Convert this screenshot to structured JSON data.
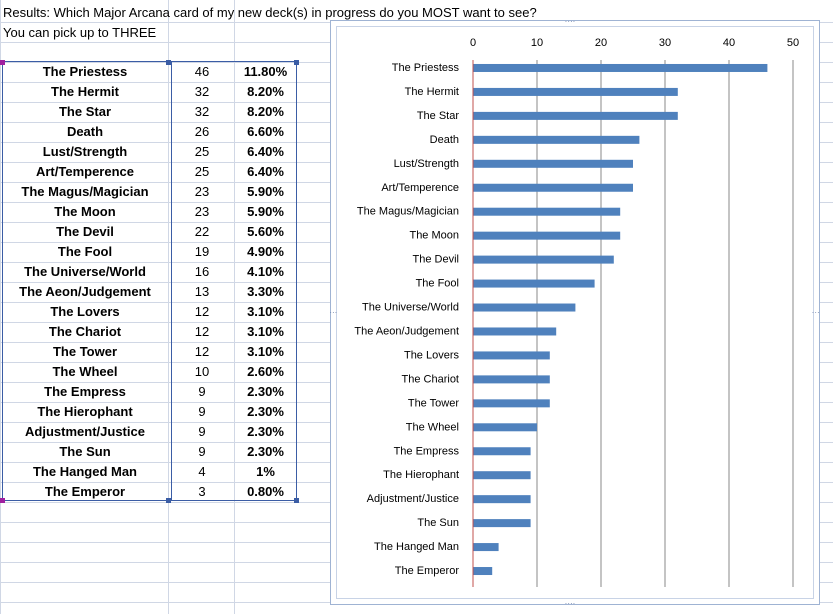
{
  "sheet": {
    "title_line1": "Results: Which Major Arcana card of my new deck(s) in progress do you MOST want to see?",
    "title_line2": "You can pick up to THREE"
  },
  "table": {
    "rows": [
      {
        "name": "The Priestess",
        "count": "46",
        "pct": "11.80%"
      },
      {
        "name": "The Hermit",
        "count": "32",
        "pct": "8.20%"
      },
      {
        "name": "The Star",
        "count": "32",
        "pct": "8.20%"
      },
      {
        "name": "Death",
        "count": "26",
        "pct": "6.60%"
      },
      {
        "name": "Lust/Strength",
        "count": "25",
        "pct": "6.40%"
      },
      {
        "name": "Art/Temperence",
        "count": "25",
        "pct": "6.40%"
      },
      {
        "name": "The Magus/Magician",
        "count": "23",
        "pct": "5.90%"
      },
      {
        "name": "The Moon",
        "count": "23",
        "pct": "5.90%"
      },
      {
        "name": "The Devil",
        "count": "22",
        "pct": "5.60%"
      },
      {
        "name": "The Fool",
        "count": "19",
        "pct": "4.90%"
      },
      {
        "name": "The Universe/World",
        "count": "16",
        "pct": "4.10%"
      },
      {
        "name": "The Aeon/Judgement",
        "count": "13",
        "pct": "3.30%"
      },
      {
        "name": "The Lovers",
        "count": "12",
        "pct": "3.10%"
      },
      {
        "name": "The Chariot",
        "count": "12",
        "pct": "3.10%"
      },
      {
        "name": "The Tower",
        "count": "12",
        "pct": "3.10%"
      },
      {
        "name": "The Wheel",
        "count": "10",
        "pct": "2.60%"
      },
      {
        "name": "The Empress",
        "count": "9",
        "pct": "2.30%"
      },
      {
        "name": "The Hierophant",
        "count": "9",
        "pct": "2.30%"
      },
      {
        "name": "Adjustment/Justice",
        "count": "9",
        "pct": "2.30%"
      },
      {
        "name": "The Sun",
        "count": "9",
        "pct": "2.30%"
      },
      {
        "name": "The Hanged Man",
        "count": "4",
        "pct": "1%"
      },
      {
        "name": "The Emperor",
        "count": "3",
        "pct": "0.80%"
      }
    ]
  },
  "chart_data": {
    "type": "bar",
    "orientation": "horizontal",
    "categories": [
      "The Priestess",
      "The Hermit",
      "The Star",
      "Death",
      "Lust/Strength",
      "Art/Temperence",
      "The Magus/Magician",
      "The Moon",
      "The Devil",
      "The Fool",
      "The Universe/World",
      "The Aeon/Judgement",
      "The Lovers",
      "The Chariot",
      "The Tower",
      "The Wheel",
      "The Empress",
      "The Hierophant",
      "Adjustment/Justice",
      "The Sun",
      "The Hanged Man",
      "The Emperor"
    ],
    "values": [
      46,
      32,
      32,
      26,
      25,
      25,
      23,
      23,
      22,
      19,
      16,
      13,
      12,
      12,
      12,
      10,
      9,
      9,
      9,
      9,
      4,
      3
    ],
    "xlim": [
      0,
      50
    ],
    "xticks": [
      0,
      10,
      20,
      30,
      40,
      50
    ],
    "grid": true,
    "legend": "none",
    "bar_color": "#4f81bd",
    "axis_position": "top"
  },
  "colors": {
    "gridline": "#d0d7e5",
    "selection_border": "#3b5da5",
    "selection_handle_purple": "#a020a0",
    "chart_frame": "#9fb3d3"
  }
}
